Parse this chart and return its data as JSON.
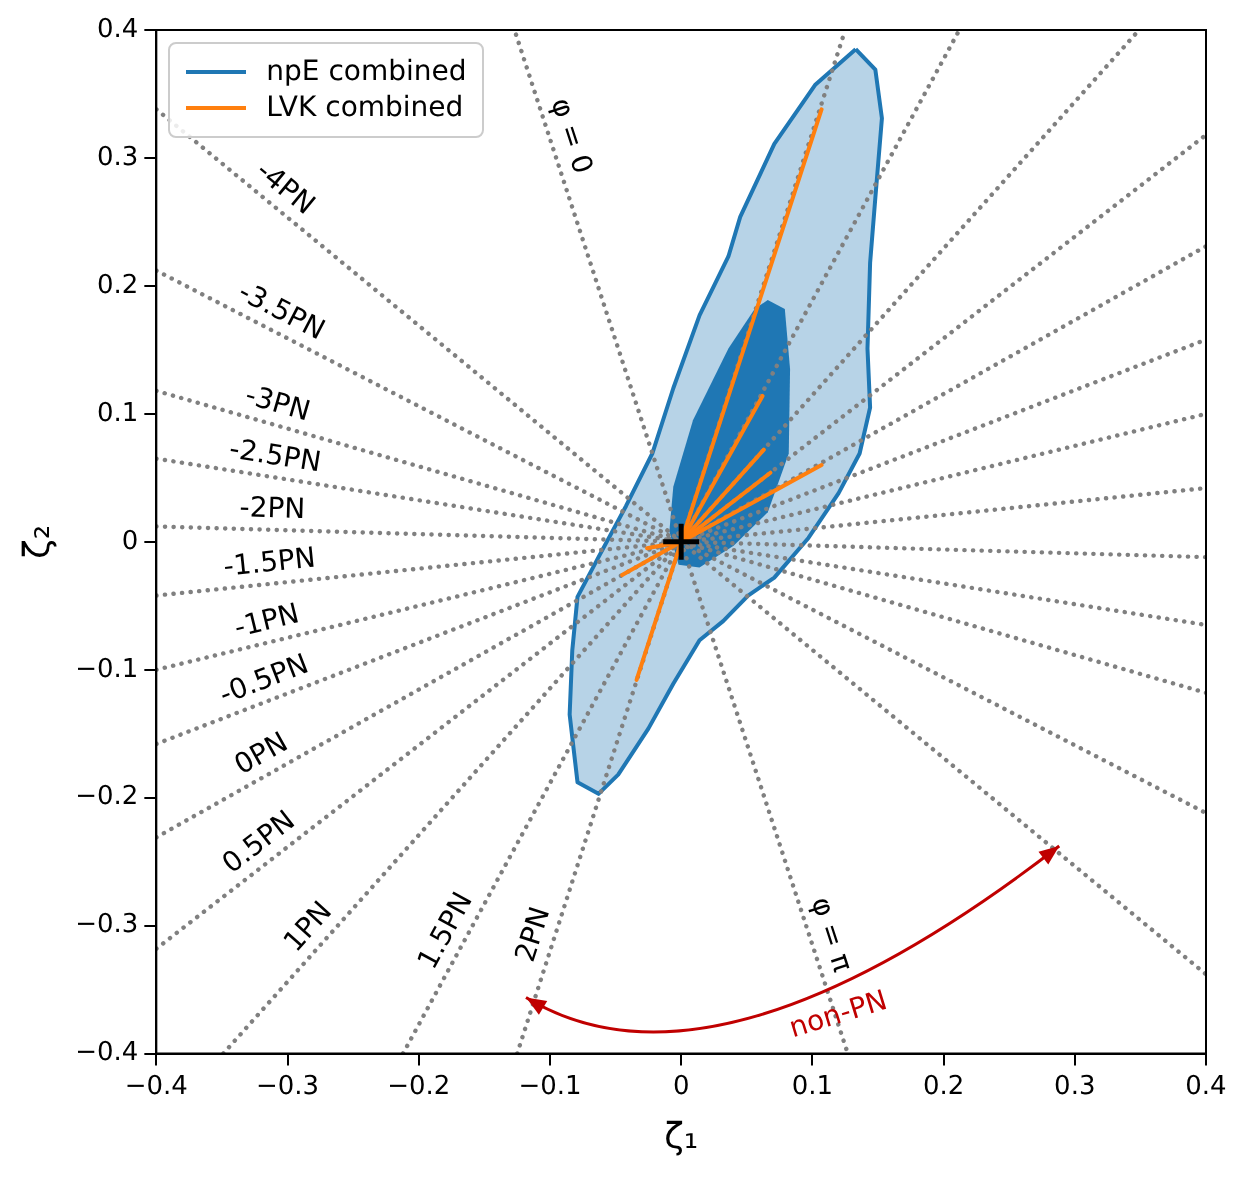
{
  "chart_data": {
    "type": "line",
    "xlabel": "ζ₁",
    "ylabel": "ζ₂",
    "xlim": [
      -0.4,
      0.4
    ],
    "ylim": [
      -0.4,
      0.4
    ],
    "xticks": [
      -0.4,
      -0.3,
      -0.2,
      -0.1,
      0,
      0.1,
      0.2,
      0.3,
      0.4
    ],
    "yticks": [
      -0.4,
      -0.3,
      -0.2,
      -0.1,
      0,
      0.1,
      0.2,
      0.3,
      0.4
    ],
    "grid": false,
    "legend": "top left",
    "series": [
      {
        "type": "area",
        "name": "npE combined",
        "color": "#1f77b4",
        "x": [
          0.133,
          0.148,
          0.153,
          0.148,
          0.144,
          0.142,
          0.144,
          0.136,
          0.12,
          0.097,
          0.071,
          0.051,
          0.032,
          0.014,
          -0.006,
          -0.025,
          -0.048,
          -0.063,
          -0.079,
          -0.085,
          -0.083,
          -0.079,
          -0.063,
          -0.042,
          -0.022,
          -0.006,
          0.014,
          0.036,
          0.045,
          0.071,
          0.102,
          0.133
        ],
        "values": [
          0.385,
          0.369,
          0.331,
          0.269,
          0.218,
          0.151,
          0.105,
          0.069,
          0.038,
          0.003,
          -0.028,
          -0.042,
          -0.062,
          -0.077,
          -0.111,
          -0.146,
          -0.182,
          -0.197,
          -0.188,
          -0.135,
          -0.085,
          -0.043,
          -0.012,
          0.028,
          0.069,
          0.12,
          0.177,
          0.223,
          0.254,
          0.311,
          0.357,
          0.385
        ]
      },
      {
        "type": "area",
        "color": "#1f77b4",
        "x": [
          0.066,
          0.079,
          0.083,
          0.082,
          0.066,
          0.04,
          0.014,
          -0.002,
          -0.009,
          -0.006,
          0.009,
          0.036,
          0.056,
          0.066
        ],
        "values": [
          0.189,
          0.182,
          0.135,
          0.069,
          0.023,
          -0.003,
          -0.02,
          -0.018,
          0.008,
          0.043,
          0.095,
          0.151,
          0.182,
          0.189
        ]
      },
      {
        "name": "-4PN",
        "color": "#808080",
        "line_style": "dotted",
        "x": [
          -0.4,
          0.4
        ],
        "values": [
          0.338,
          -0.338
        ]
      },
      {
        "name": "-3.5PN",
        "color": "#808080",
        "line_style": "dotted",
        "x": [
          -0.4,
          0.4
        ],
        "values": [
          0.212,
          -0.212
        ]
      },
      {
        "name": "-3PN",
        "color": "#808080",
        "line_style": "dotted",
        "x": [
          -0.4,
          0.4
        ],
        "values": [
          0.118,
          -0.118
        ]
      },
      {
        "name": "-2.5PN",
        "color": "#808080",
        "line_style": "dotted",
        "x": [
          -0.4,
          0.4
        ],
        "values": [
          0.065,
          -0.065
        ]
      },
      {
        "name": "-2PN",
        "color": "#808080",
        "line_style": "dotted",
        "x": [
          -0.4,
          0.4
        ],
        "values": [
          0.012,
          -0.012
        ]
      },
      {
        "name": "-1.5PN",
        "color": "#808080",
        "line_style": "dotted",
        "x": [
          -0.4,
          0.4
        ],
        "values": [
          -0.042,
          0.042
        ]
      },
      {
        "name": "-1PN",
        "color": "#808080",
        "line_style": "dotted",
        "x": [
          -0.4,
          0.4
        ],
        "values": [
          -0.1,
          0.1
        ]
      },
      {
        "name": "-0.5PN",
        "color": "#808080",
        "line_style": "dotted",
        "x": [
          -0.4,
          0.4
        ],
        "values": [
          -0.158,
          0.158
        ]
      },
      {
        "name": "0PN",
        "color": "#808080",
        "line_style": "dotted",
        "x": [
          -0.4,
          0.4
        ],
        "values": [
          -0.231,
          0.231
        ]
      },
      {
        "name": "0.5PN",
        "color": "#808080",
        "line_style": "dotted",
        "x": [
          -0.4,
          0.4
        ],
        "values": [
          -0.318,
          0.318
        ]
      },
      {
        "name": "1PN",
        "color": "#808080",
        "line_style": "dotted",
        "x": [
          -0.349,
          0.349
        ],
        "values": [
          -0.4,
          0.4
        ]
      },
      {
        "name": "1.5PN",
        "color": "#808080",
        "line_style": "dotted",
        "x": [
          -0.212,
          0.212
        ],
        "values": [
          -0.4,
          0.4
        ]
      },
      {
        "name": "2PN",
        "color": "#808080",
        "line_style": "dotted",
        "x": [
          -0.125,
          0.125
        ],
        "values": [
          -0.4,
          0.4
        ]
      },
      {
        "name": "φ = 0",
        "color": "#808080",
        "line_style": "dotted",
        "x": [
          0,
          -0.127
        ],
        "values": [
          0,
          0.4
        ]
      },
      {
        "name": "φ = π",
        "color": "#808080",
        "line_style": "dotted",
        "x": [
          0,
          0.127
        ],
        "values": [
          0,
          -0.4
        ]
      },
      {
        "name": "LVK combined",
        "color": "#ff7f0e",
        "x": [
          0,
          0.107
        ],
        "values": [
          0,
          0.338
        ]
      },
      {
        "color": "#ff7f0e",
        "x": [
          0,
          0.062
        ],
        "values": [
          0,
          0.114
        ]
      },
      {
        "color": "#ff7f0e",
        "x": [
          0,
          0.063
        ],
        "values": [
          0,
          0.072
        ]
      },
      {
        "color": "#ff7f0e",
        "x": [
          0,
          0.068
        ],
        "values": [
          0,
          0.054
        ]
      },
      {
        "color": "#ff7f0e",
        "x": [
          0,
          0.107
        ],
        "values": [
          0,
          0.06
        ]
      },
      {
        "color": "#ff7f0e",
        "x": [
          0,
          -0.045
        ],
        "values": [
          0,
          -0.026
        ]
      },
      {
        "color": "#ff7f0e",
        "x": [
          0,
          -0.026
        ],
        "values": [
          0,
          -0.005
        ]
      },
      {
        "color": "#ff7f0e",
        "x": [
          0,
          -0.034
        ],
        "values": [
          0,
          -0.108
        ]
      },
      {
        "type": "scatter",
        "color": "#000000",
        "marker": "cross",
        "x": [
          0
        ],
        "values": [
          0
        ]
      }
    ],
    "annotations": [
      "non-PN"
    ]
  }
}
